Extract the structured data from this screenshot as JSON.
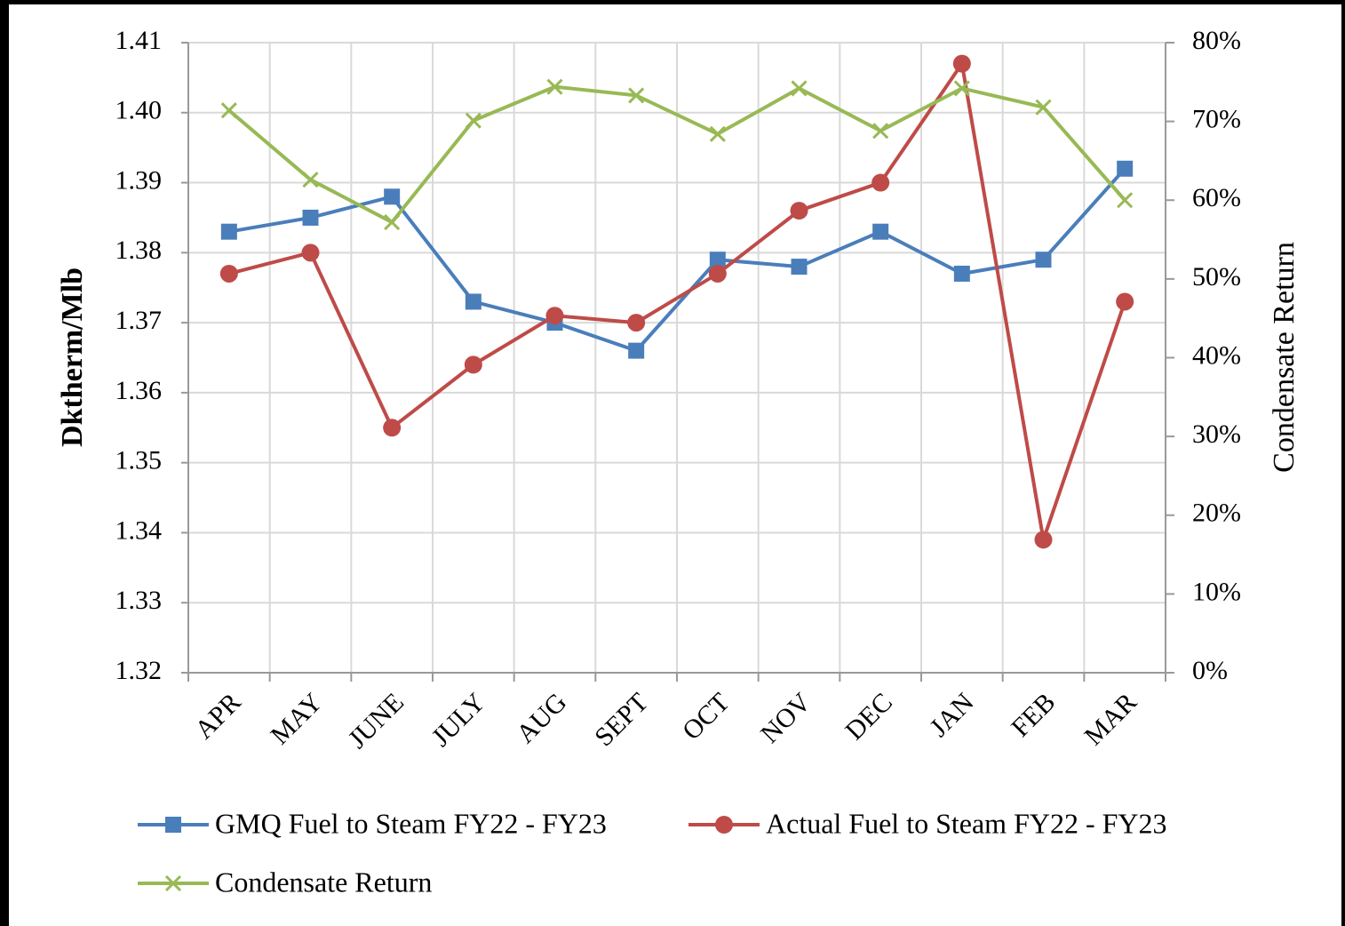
{
  "chart_data": {
    "type": "line",
    "categories": [
      "APR",
      "MAY",
      "JUNE",
      "JULY",
      "AUG",
      "SEPT",
      "OCT",
      "NOV",
      "DEC",
      "JAN",
      "FEB",
      "MAR"
    ],
    "series": [
      {
        "name": "GMQ Fuel to Steam FY22 - FY23",
        "color": "#4a7ebb",
        "marker": "square",
        "values": [
          1.383,
          1.385,
          1.388,
          1.373,
          1.37,
          1.366,
          1.379,
          1.378,
          1.383,
          1.377,
          1.379,
          1.392
        ]
      },
      {
        "name": "Actual Fuel to Steam FY22 - FY23",
        "color": "#be4b48",
        "marker": "circle",
        "values": [
          1.377,
          1.38,
          1.355,
          1.364,
          1.371,
          1.37,
          1.377,
          1.386,
          1.39,
          1.407,
          1.339,
          1.373
        ]
      },
      {
        "name": "Condensate Return",
        "color": "#98b954",
        "marker": "x",
        "axis": "y2",
        "values": [
          71.4,
          62.6,
          57.2,
          70.1,
          74.4,
          73.3,
          68.4,
          74.2,
          68.8,
          74.2,
          71.8,
          60.0
        ]
      }
    ],
    "ylabel": "Dktherm/Mlb",
    "y2label": "Condensate Return",
    "ylim": [
      1.32,
      1.41
    ],
    "yticks": [
      1.32,
      1.33,
      1.34,
      1.35,
      1.36,
      1.37,
      1.38,
      1.39,
      {
        "value": 1.4,
        "label": "1.40"
      },
      1.41
    ],
    "y2lim": [
      0,
      80
    ],
    "y2ticks": [
      {
        "value": 0,
        "label": "0%"
      },
      {
        "value": 10,
        "label": "10%"
      },
      {
        "value": 20,
        "label": "20%"
      },
      {
        "value": 30,
        "label": "30%"
      },
      {
        "value": 40,
        "label": "40%"
      },
      {
        "value": 50,
        "label": "50%"
      },
      {
        "value": 60,
        "label": "60%"
      },
      {
        "value": 70,
        "label": "70%"
      },
      {
        "value": 80,
        "label": "80%"
      }
    ],
    "grid": true,
    "legend": "bottom"
  }
}
